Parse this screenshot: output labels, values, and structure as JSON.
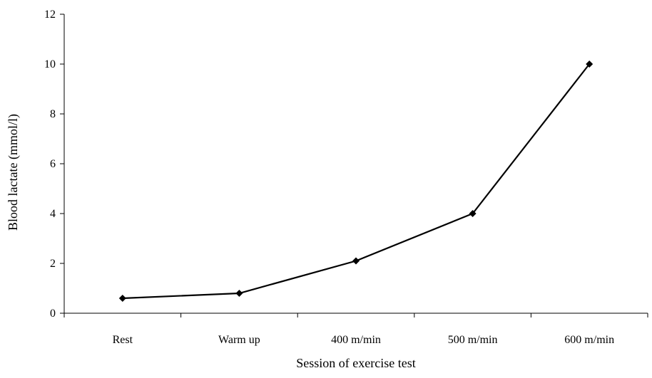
{
  "chart_data": {
    "type": "line",
    "title": "",
    "xlabel": "Session of exercise test",
    "ylabel": "Blood lactate (mmol/l)",
    "categories": [
      "Rest",
      "Warm up",
      "400 m/min",
      "500 m/min",
      "600 m/min"
    ],
    "series": [
      {
        "values": [
          0.6,
          0.8,
          2.1,
          4.0,
          10.0
        ],
        "marker": "diamond",
        "color": "#000000"
      }
    ],
    "ylim": [
      0,
      12
    ],
    "yticks": [
      0,
      2,
      4,
      6,
      8,
      10,
      12
    ],
    "ytick_labels": [
      "0",
      "2",
      "4",
      "6",
      "8",
      "10",
      "12"
    ],
    "grid": false,
    "legend": "none"
  }
}
